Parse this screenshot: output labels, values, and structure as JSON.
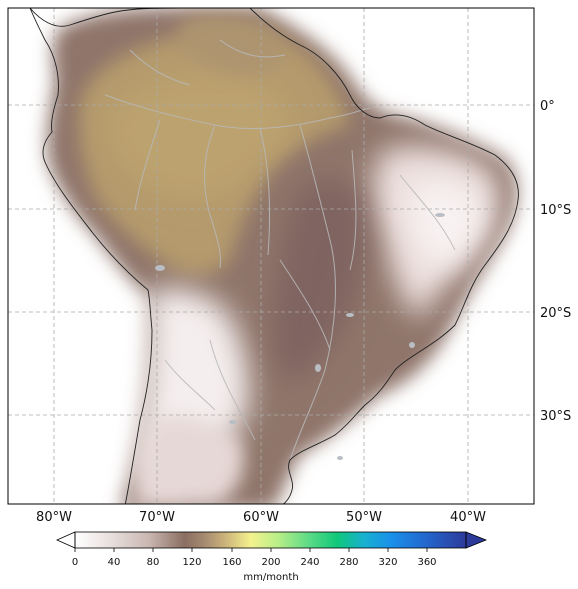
{
  "map": {
    "lat_labels": [
      "0°",
      "10°S",
      "20°S",
      "30°S"
    ],
    "lon_labels": [
      "80°W",
      "70°W",
      "60°W",
      "50°W",
      "40°W"
    ],
    "extent": {
      "lon_min": -84.5,
      "lon_max": -33.6,
      "lat_max": 9.5,
      "lat_min": -38.3
    },
    "gridlines": true
  },
  "colorbar": {
    "ticks": [
      "0",
      "40",
      "80",
      "120",
      "160",
      "200",
      "240",
      "280",
      "320",
      "360"
    ],
    "unit": "mm/month",
    "range": [
      -20,
      400
    ],
    "colors": [
      "#ffffff",
      "#e6dcda",
      "#c9b6b0",
      "#a48a80",
      "#8a6e61",
      "#a89071",
      "#c2a877",
      "#f2f08c",
      "#c4f08a",
      "#6fe08a",
      "#10d07a",
      "#18b8c8",
      "#1a90e8",
      "#2266cc",
      "#2c3c9c"
    ]
  }
}
